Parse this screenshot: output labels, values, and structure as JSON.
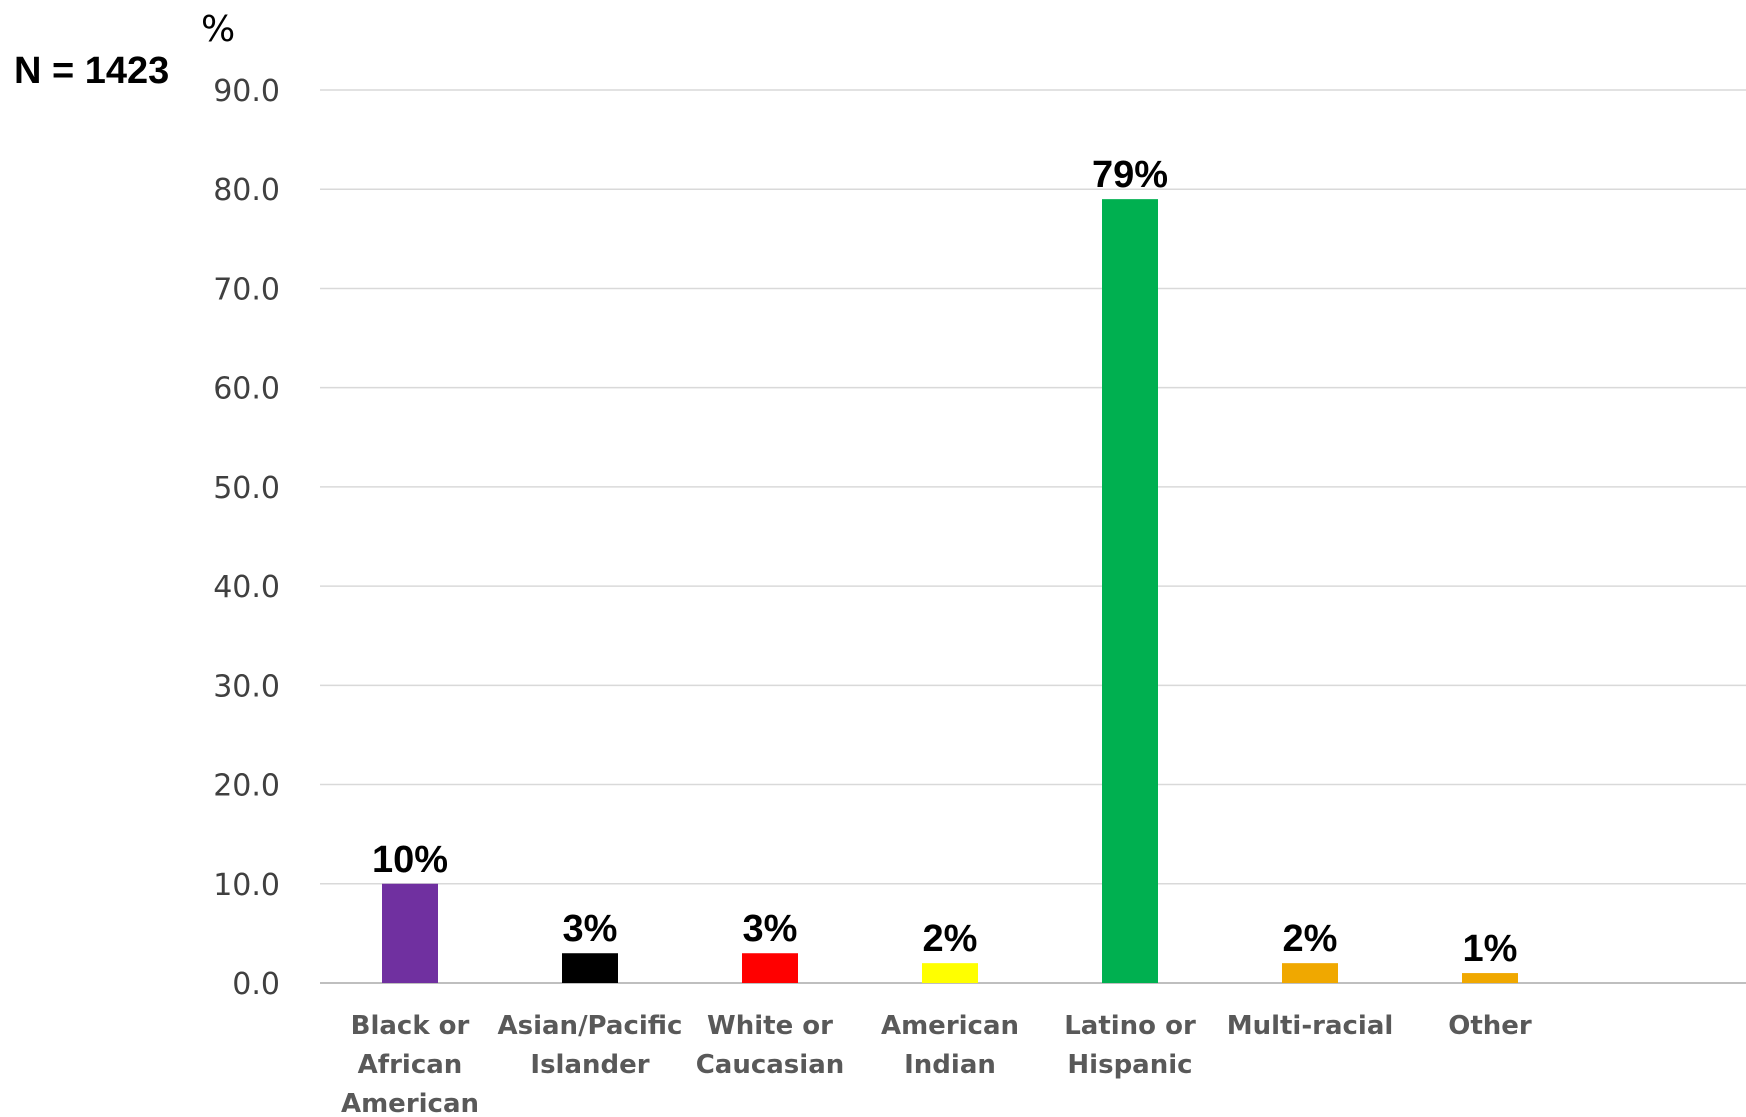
{
  "chart_data": {
    "type": "bar",
    "annotation": "N = 1423",
    "ylabel": "%",
    "xlabel": "",
    "ylim": [
      0,
      90
    ],
    "yticks": [
      0,
      10,
      20,
      30,
      40,
      50,
      60,
      70,
      80,
      90
    ],
    "ytick_labels": [
      "0.0",
      "10.0",
      "20.0",
      "30.0",
      "40.0",
      "50.0",
      "60.0",
      "70.0",
      "80.0",
      "90.0"
    ],
    "grid": true,
    "legend": "none",
    "categories": [
      [
        "Black or",
        "African",
        "American"
      ],
      [
        "Asian/Pacific",
        "Islander"
      ],
      [
        "White or",
        "Caucasian"
      ],
      [
        "American",
        "Indian"
      ],
      [
        "Latino or",
        "Hispanic"
      ],
      [
        "Multi-racial"
      ],
      [
        "Other"
      ]
    ],
    "values": [
      10,
      3,
      3,
      2,
      79,
      2,
      1
    ],
    "data_labels": [
      "10%",
      "3%",
      "3%",
      "2%",
      "79%",
      "2%",
      "1%"
    ],
    "colors": [
      "#7030a0",
      "#000000",
      "#ff0000",
      "#ffff00",
      "#00b050",
      "#f0a800",
      "#f0a800"
    ]
  }
}
